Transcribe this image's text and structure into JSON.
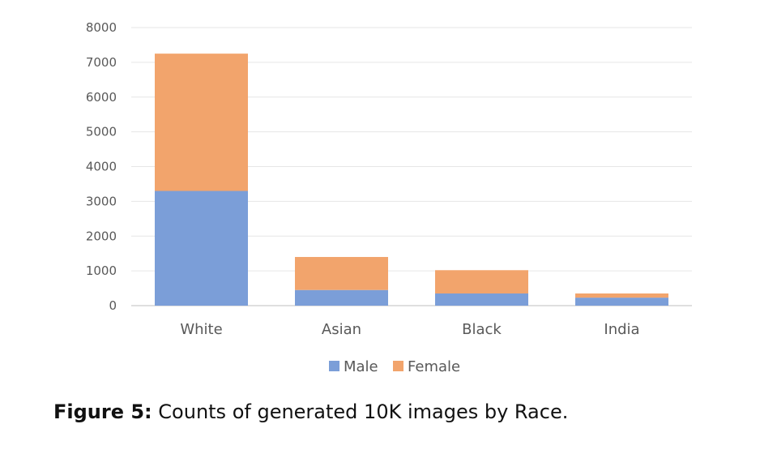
{
  "chart_data": {
    "type": "bar",
    "stacked": true,
    "categories": [
      "White",
      "Asian",
      "Black",
      "India"
    ],
    "series": [
      {
        "name": "Male",
        "values": [
          3300,
          450,
          350,
          230
        ],
        "color": "#7b9ed8"
      },
      {
        "name": "Female",
        "values": [
          3950,
          950,
          670,
          120
        ],
        "color": "#f2a46c"
      }
    ],
    "yticks": [
      "0",
      "1000",
      "2000",
      "3000",
      "4000",
      "5000",
      "6000",
      "7000",
      "8000"
    ],
    "ylim": [
      0,
      8000
    ],
    "grid": true,
    "legend_position": "bottom"
  },
  "caption": {
    "label": "Figure 5:",
    "text": " Counts of generated 10K images by Race."
  }
}
